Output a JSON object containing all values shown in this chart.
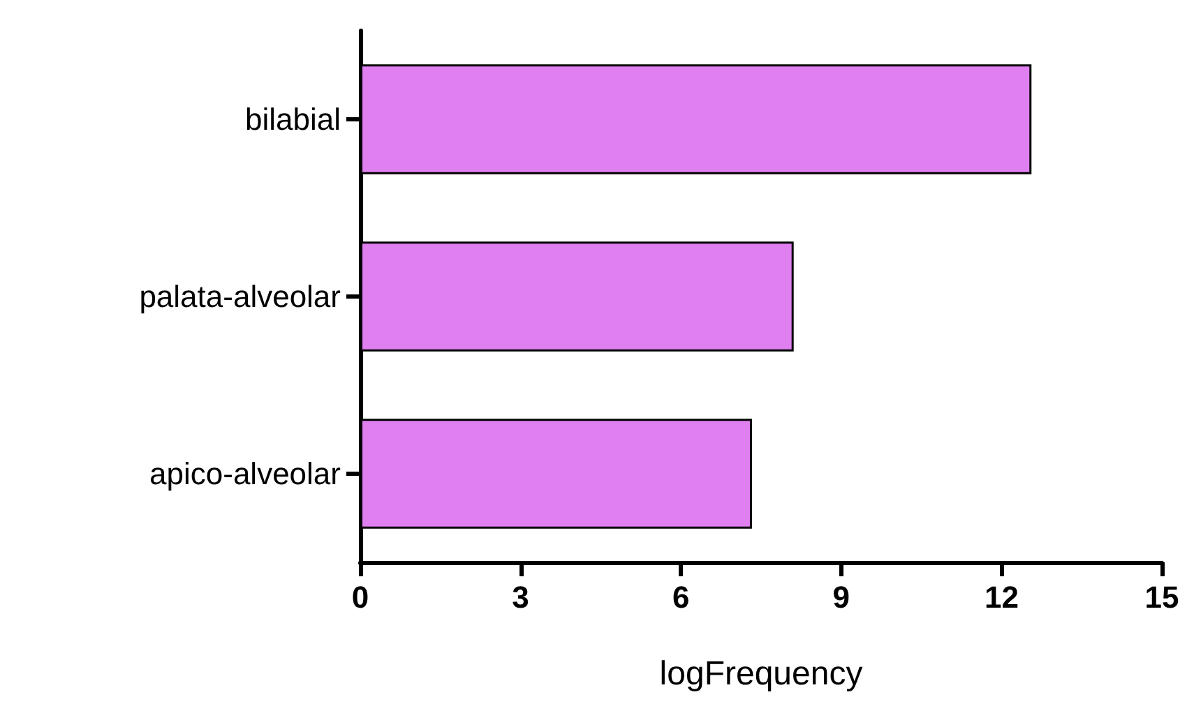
{
  "chart_data": {
    "type": "bar",
    "orientation": "horizontal",
    "categories": [
      "bilabial",
      "palata-alveolar",
      "apico-alveolar"
    ],
    "values": [
      12.56,
      8.11,
      7.33
    ],
    "color": "#e07ff0",
    "xlabel": "logFrequency",
    "xlim": [
      0,
      15
    ],
    "xticks": [
      0,
      3,
      6,
      9,
      12,
      15
    ],
    "grid": false
  }
}
